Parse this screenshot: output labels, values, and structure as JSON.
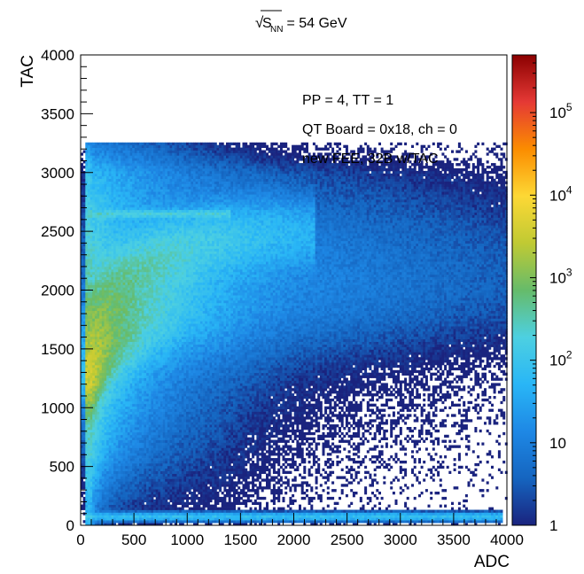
{
  "chart_data": {
    "type": "heatmap",
    "title": {
      "sqrt_symbol": "√",
      "main": "S",
      "subscript": "NN",
      "rest": " = 54 GeV"
    },
    "xlabel": "ADC",
    "ylabel": "TAC",
    "xlim": [
      0,
      4000
    ],
    "ylim": [
      0,
      4000
    ],
    "x_ticks": [
      "0",
      "500",
      "1000",
      "1500",
      "2000",
      "2500",
      "3000",
      "3500",
      "4000"
    ],
    "y_ticks": [
      "0",
      "500",
      "1000",
      "1500",
      "2000",
      "2500",
      "3000",
      "3500",
      "4000"
    ],
    "x_tick_values": [
      0,
      500,
      1000,
      1500,
      2000,
      2500,
      3000,
      3500,
      4000
    ],
    "y_tick_values": [
      0,
      500,
      1000,
      1500,
      2000,
      2500,
      3000,
      3500,
      4000
    ],
    "z_scale": "log",
    "zlim": [
      1,
      500000
    ],
    "z_ticks": [
      {
        "value": 1,
        "base": "1",
        "exp": ""
      },
      {
        "value": 10,
        "base": "10",
        "exp": ""
      },
      {
        "value": 100,
        "base": "10",
        "exp": "2"
      },
      {
        "value": 1000,
        "base": "10",
        "exp": "3"
      },
      {
        "value": 10000,
        "base": "10",
        "exp": "4"
      },
      {
        "value": 100000,
        "base": "10",
        "exp": "5"
      }
    ],
    "annotations": [
      "PP = 4, TT = 1",
      "QT Board = 0x18, ch = 0",
      "new FEE, 32B w/TAC"
    ],
    "colormap": [
      "#1a237e",
      "#1565c0",
      "#1e88e5",
      "#29b6f6",
      "#4dd0e1",
      "#66bb6a",
      "#c0ca33",
      "#fdd835",
      "#fb8c00",
      "#e53935",
      "#8b0000"
    ],
    "density_features": {
      "main_band": {
        "ridge_points": [
          [
            100,
            1250
          ],
          [
            200,
            1450
          ],
          [
            400,
            1650
          ],
          [
            700,
            1820
          ],
          [
            1000,
            1920
          ],
          [
            1500,
            1990
          ],
          [
            2000,
            2030
          ],
          [
            2500,
            2050
          ],
          [
            3000,
            2060
          ],
          [
            3500,
            2070
          ],
          [
            3900,
            2070
          ]
        ],
        "peak_counts_per_x": [
          [
            100,
            3000
          ],
          [
            300,
            800
          ],
          [
            600,
            250
          ],
          [
            1000,
            80
          ],
          [
            1500,
            25
          ],
          [
            2000,
            12
          ],
          [
            3000,
            6
          ],
          [
            4000,
            3
          ]
        ]
      },
      "secondary_band": {
        "ridge_points": [
          [
            100,
            1750
          ],
          [
            300,
            2000
          ],
          [
            700,
            2250
          ],
          [
            1200,
            2400
          ],
          [
            1800,
            2480
          ]
        ],
        "peak_counts": 300
      },
      "horizontal_lines": [
        {
          "y": 2650,
          "x_range": [
            60,
            1400
          ],
          "counts": 150
        },
        {
          "y": 75,
          "x_range": [
            40,
            3950
          ],
          "counts": 80
        }
      ],
      "vertical_edge": {
        "x": 70,
        "y_range": [
          0,
          3250
        ],
        "counts": 50
      }
    }
  }
}
